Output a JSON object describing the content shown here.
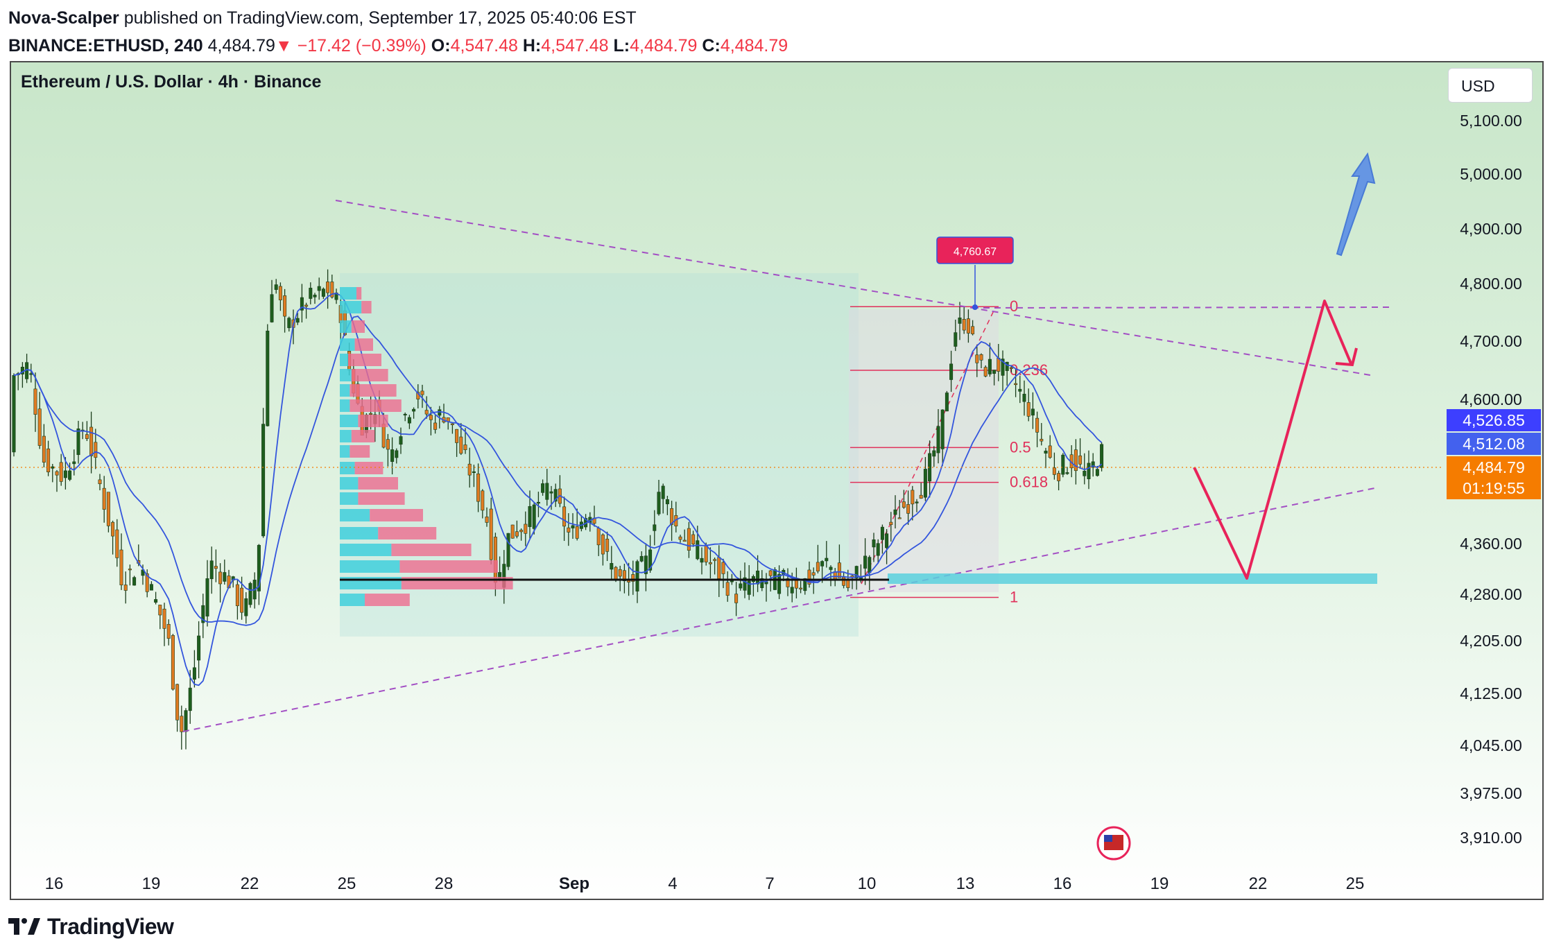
{
  "header": {
    "publisher": "Nova-Scalper",
    "published_text": "published on TradingView.com, September 17, 2025 05:40:06 EST",
    "symbol": "BINANCE:ETHUSD, 240",
    "last": "4,484.79",
    "change_arrow": "▼",
    "change": "−17.42 (−0.39%)",
    "o_label": "O:",
    "o": "4,547.48",
    "h_label": "H:",
    "h": "4,547.48",
    "l_label": "L:",
    "l": "4,484.79",
    "c_label": "C:",
    "c": "4,484.79"
  },
  "chart": {
    "title": "Ethereum / U.S. Dollar · 4h · Binance",
    "currency_button": "USD",
    "peak_label": "4,760.67"
  },
  "footer": {
    "brand": "TradingView",
    "logo_icon": "tradingview-logo-icon"
  },
  "chart_data": {
    "type": "candlestick",
    "title": "Ethereum / U.S. Dollar · 4h · Binance",
    "y_axis": {
      "ticks": [
        5100,
        5000,
        4900,
        4800,
        4700,
        4600,
        4360,
        4280,
        4205,
        4125,
        4045,
        3975,
        3910
      ],
      "tick_labels": [
        "5,100.00",
        "5,000.00",
        "4,900.00",
        "4,800.00",
        "4,700.00",
        "4,600.00",
        "4,360.00",
        "4,280.00",
        "4,205.00",
        "4,125.00",
        "4,045.00",
        "3,975.00",
        "3,910.00"
      ]
    },
    "x_axis": {
      "tick_labels": [
        "16",
        "19",
        "22",
        "25",
        "28",
        "Sep",
        "4",
        "7",
        "10",
        "13",
        "16",
        "19",
        "22",
        "25"
      ]
    },
    "price_labels": [
      {
        "value": "4,526.85",
        "color": "#3d3fff"
      },
      {
        "value": "4,512.08",
        "color": "#4361ee"
      },
      {
        "value": "4,484.79",
        "color": "#f57c00"
      },
      {
        "value": "01:19:55",
        "color": "#f57c00"
      }
    ],
    "fib_levels": [
      {
        "label": "0",
        "price": 4760
      },
      {
        "label": "0.236",
        "price": 4650
      },
      {
        "label": "0.5",
        "price": 4520
      },
      {
        "label": "0.618",
        "price": 4462
      },
      {
        "label": "1",
        "price": 4275
      }
    ],
    "peak": 4760.67,
    "colors": {
      "up": "#1e5e1e",
      "down": "#e07b22",
      "ma": "#3355dd",
      "fib": "#e0305a",
      "trend": "#a34fc4",
      "zone": "#5bd0dd",
      "projection": "#e8235a",
      "target_arrow": "#5b8ee6"
    }
  }
}
